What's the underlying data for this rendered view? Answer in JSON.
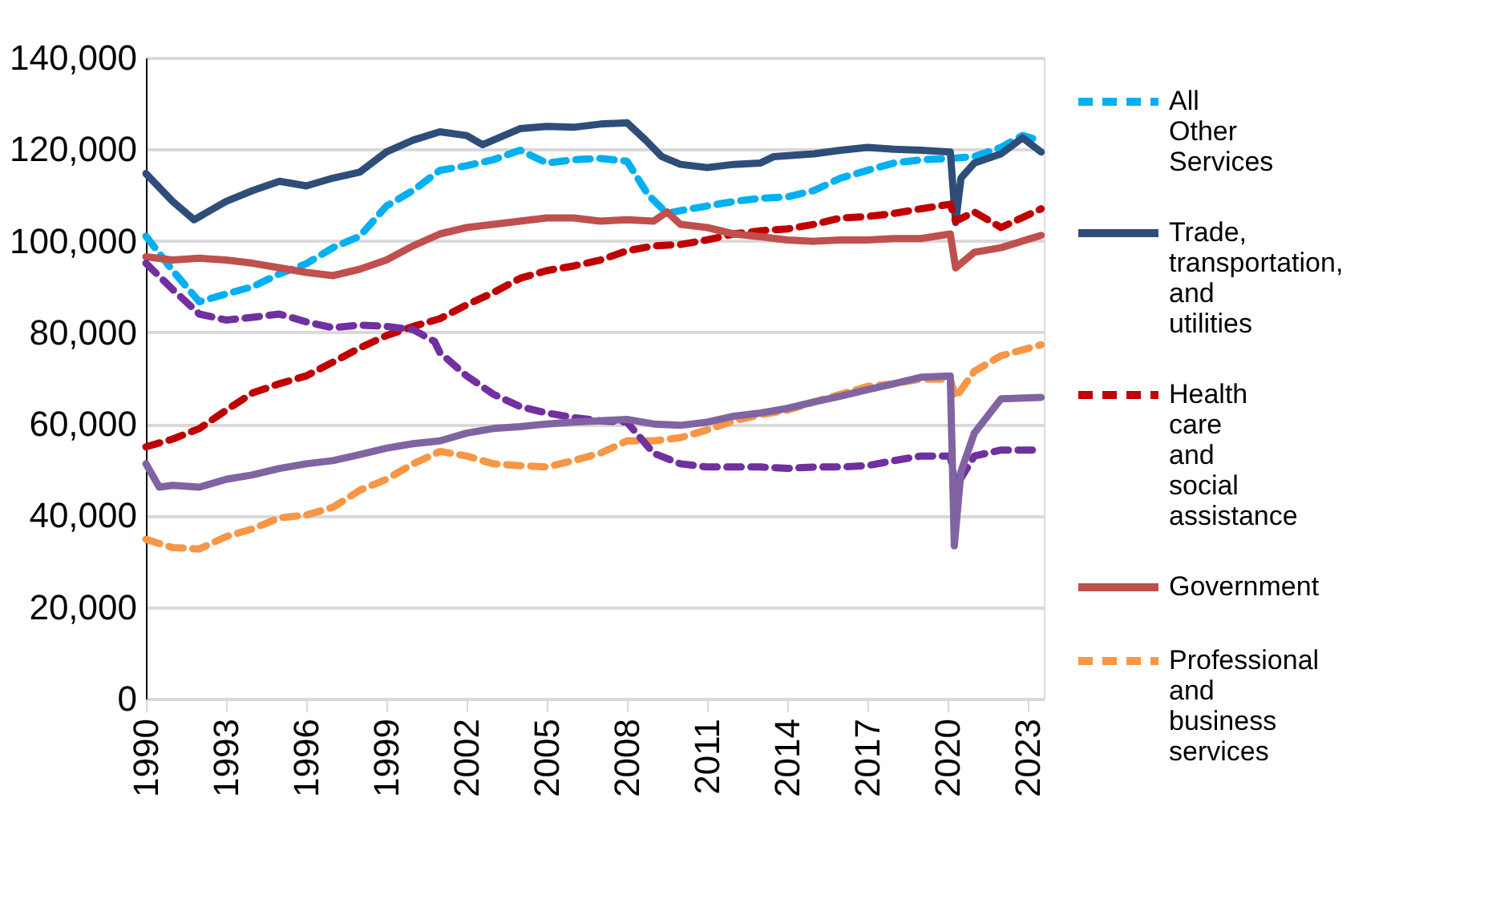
{
  "chart_data": {
    "type": "line",
    "xlim": [
      1990,
      2023.6
    ],
    "xticks": [
      1990,
      1993,
      1996,
      1999,
      2002,
      2005,
      2008,
      2011,
      2014,
      2017,
      2020,
      2023
    ],
    "ylim": [
      0,
      140000
    ],
    "yticks": [
      0,
      {
        "value": 20000,
        "label": "20,000"
      },
      {
        "value": 40000,
        "label": "40,000"
      },
      {
        "value": 60000,
        "label": "60,000"
      },
      {
        "value": 80000,
        "label": "80,000"
      },
      {
        "value": 100000,
        "label": "100,000"
      },
      {
        "value": 120000,
        "label": "120,000"
      },
      {
        "value": 140000,
        "label": "140,000"
      }
    ],
    "grid": "y",
    "legend": "right",
    "series": [
      {
        "name": "All Other Services",
        "color": "#00b0f0",
        "line_style": "dashed",
        "x": [
          1990,
          1991,
          1992,
          1993,
          1994,
          1995,
          1996,
          1997,
          1998,
          1999,
          2000,
          2001,
          2002,
          2003,
          2004,
          2005,
          2006,
          2007,
          2008,
          2008.8,
          2009.5,
          2010,
          2011,
          2012,
          2013,
          2014,
          2015,
          2016,
          2017,
          2018,
          2019,
          2020.1,
          2021,
          2022,
          2022.8,
          2023.5
        ],
        "values": [
          101000,
          93500,
          86700,
          88400,
          90000,
          92800,
          95000,
          98500,
          101000,
          107600,
          111000,
          115400,
          116400,
          117700,
          119800,
          117000,
          117700,
          118000,
          117400,
          110000,
          106000,
          106600,
          107600,
          108600,
          109300,
          109600,
          111000,
          113700,
          115400,
          117000,
          117700,
          118000,
          118400,
          120400,
          123000,
          121800
        ]
      },
      {
        "name": "Trade, transportation, and utilities",
        "color": "#2e4e79",
        "line_style": "solid",
        "x": [
          1990,
          1991,
          1991.8,
          1993,
          1994,
          1995,
          1996,
          1997,
          1998,
          1999,
          2000,
          2001,
          2002,
          2002.6,
          2003,
          2004,
          2005,
          2006,
          2007,
          2008,
          2008.7,
          2009.3,
          2010,
          2011,
          2012,
          2013,
          2013.5,
          2015,
          2016,
          2017,
          2018,
          2019,
          2020.1,
          2020.3,
          2020.5,
          2021,
          2022,
          2022.8,
          2023.5
        ],
        "values": [
          114700,
          108600,
          104600,
          108600,
          111000,
          113000,
          112000,
          113700,
          115000,
          119400,
          122000,
          123800,
          123000,
          121000,
          122000,
          124500,
          125000,
          124800,
          125500,
          125800,
          122000,
          118400,
          116700,
          116000,
          116700,
          117000,
          118400,
          119000,
          119800,
          120400,
          120000,
          119800,
          119400,
          104000,
          113700,
          117000,
          119000,
          122500,
          119400
        ]
      },
      {
        "name": "Health care and social assistance",
        "color": "#c00000",
        "line_style": "dashed",
        "x": [
          1990,
          1991,
          1992,
          1993,
          1994,
          1995,
          1996,
          1997,
          1998,
          1999,
          2000,
          2001,
          2002,
          2003,
          2004,
          2005,
          2006,
          2007,
          2008,
          2009,
          2010,
          2011,
          2012,
          2013,
          2014,
          2015,
          2016,
          2017,
          2018,
          2019,
          2020.1,
          2020.3,
          2021,
          2022,
          2023.5
        ],
        "values": [
          55000,
          56700,
          59000,
          63000,
          66800,
          68800,
          70500,
          73500,
          76600,
          79300,
          81300,
          83000,
          86000,
          88700,
          91800,
          93500,
          94500,
          95800,
          97800,
          98900,
          99200,
          100200,
          101500,
          102200,
          102600,
          103600,
          105000,
          105300,
          106000,
          107000,
          108000,
          104300,
          106300,
          102900,
          107000
        ]
      },
      {
        "name": "Government",
        "color": "#c0504d",
        "line_style": "solid",
        "x": [
          1990,
          1991,
          1992,
          1993,
          1994,
          1995,
          1996,
          1997,
          1998,
          1999,
          2000,
          2001,
          2002,
          2003,
          2004,
          2005,
          2006,
          2007,
          2008,
          2009,
          2009.5,
          2010,
          2011,
          2012,
          2013,
          2014,
          2015,
          2016,
          2017,
          2018,
          2019,
          2020.1,
          2020.3,
          2021,
          2022,
          2023.5
        ],
        "values": [
          96500,
          95800,
          96200,
          95800,
          95100,
          94100,
          93100,
          92400,
          93800,
          95800,
          98900,
          101500,
          102900,
          103600,
          104300,
          105000,
          105000,
          104300,
          104600,
          104300,
          106300,
          103600,
          102900,
          101500,
          100900,
          100200,
          99900,
          100200,
          100200,
          100500,
          100500,
          101500,
          94100,
          97500,
          98500,
          101200
        ]
      },
      {
        "name": "Professional and business services",
        "color": "#f79646",
        "line_style": "dashed",
        "x": [
          1990,
          1991,
          1992,
          1993,
          1994,
          1995,
          1996,
          1997,
          1998,
          1999,
          2000,
          2001,
          2002,
          2003,
          2004,
          2005,
          2006,
          2007,
          2008,
          2009,
          2010,
          2011,
          2012,
          2013,
          2014,
          2015,
          2016,
          2017,
          2018,
          2019,
          2020.1,
          2020.3,
          2021,
          2022,
          2023.5
        ],
        "values": [
          34800,
          33000,
          32700,
          35400,
          37100,
          39500,
          40100,
          41800,
          45500,
          47900,
          51300,
          54000,
          53000,
          51300,
          50900,
          50600,
          52000,
          53600,
          56300,
          56300,
          57000,
          58700,
          60700,
          62000,
          63000,
          64800,
          66500,
          68200,
          68800,
          69800,
          69800,
          65800,
          71500,
          74900,
          77300
        ]
      },
      {
        "color": "#7030a0",
        "line_style": "dashed",
        "x": [
          1990,
          1991,
          1992,
          1993,
          1994,
          1995,
          1996,
          1997,
          1998,
          1999,
          2000,
          2000.8,
          2001,
          2002,
          2003,
          2004,
          2005,
          2006,
          2007,
          2008,
          2009,
          2010,
          2011,
          2012,
          2013,
          2014,
          2015,
          2016,
          2017,
          2018,
          2019,
          2020.1,
          2020.3,
          2021,
          2022,
          2023.5
        ],
        "values": [
          95100,
          89400,
          84000,
          82700,
          83300,
          84000,
          82300,
          81000,
          81600,
          81300,
          80600,
          78000,
          75600,
          70500,
          66500,
          63800,
          62400,
          61400,
          60700,
          60400,
          53600,
          51300,
          50600,
          50600,
          50600,
          50300,
          50600,
          50600,
          50900,
          52000,
          53000,
          53000,
          46200,
          53000,
          54300,
          54300
        ]
      },
      {
        "color": "#8064a2",
        "line_style": "solid",
        "x": [
          1990,
          1990.5,
          1991,
          1992,
          1993,
          1994,
          1995,
          1996,
          1997,
          1998,
          1999,
          2000,
          2001,
          2002,
          2003,
          2004,
          2005,
          2006,
          2007,
          2008,
          2009,
          2010,
          2011,
          2012,
          2013,
          2014,
          2015,
          2016,
          2017,
          2018,
          2019,
          2020.1,
          2020.25,
          2020.5,
          2021,
          2022,
          2023.5
        ],
        "values": [
          51300,
          46200,
          46600,
          46200,
          47900,
          48900,
          50300,
          51300,
          52000,
          53300,
          54700,
          55700,
          56300,
          58000,
          59000,
          59400,
          60000,
          60400,
          60700,
          61000,
          60000,
          59700,
          60400,
          61700,
          62400,
          63400,
          64800,
          66100,
          67500,
          68800,
          70200,
          70500,
          33400,
          49600,
          58000,
          65500,
          65800
        ]
      }
    ]
  }
}
